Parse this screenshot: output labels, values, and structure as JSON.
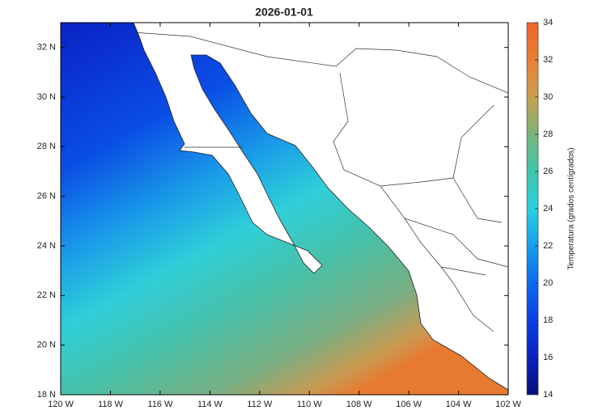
{
  "map": {
    "title": "2026-01-01",
    "xlim": [
      -120,
      -102
    ],
    "xticks": [
      {
        "value": -120,
        "label": "120 W"
      },
      {
        "value": -118,
        "label": "118 W"
      },
      {
        "value": -116,
        "label": "116 W"
      },
      {
        "value": -114,
        "label": "114 W"
      },
      {
        "value": -112,
        "label": "112 W"
      },
      {
        "value": -110,
        "label": "110 W"
      },
      {
        "value": -108,
        "label": "108 W"
      },
      {
        "value": -106,
        "label": "106 W"
      },
      {
        "value": -104,
        "label": "104 W"
      },
      {
        "value": -102,
        "label": "102 W"
      }
    ],
    "ylim": [
      18,
      33
    ],
    "yticks": [
      {
        "value": 18,
        "label": "18 N"
      },
      {
        "value": 20,
        "label": "20 N"
      },
      {
        "value": 22,
        "label": "22 N"
      },
      {
        "value": 24,
        "label": "24 N"
      },
      {
        "value": 26,
        "label": "26 N"
      },
      {
        "value": 28,
        "label": "28 N"
      },
      {
        "value": 30,
        "label": "30 N"
      },
      {
        "value": 32,
        "label": "32 N"
      }
    ],
    "colorbar": {
      "label": "Temperatura (grados centígrados)",
      "lim": [
        14,
        34
      ],
      "ticks": [
        14,
        16,
        18,
        20,
        22,
        24,
        26,
        28,
        30,
        32,
        34
      ]
    }
  }
}
